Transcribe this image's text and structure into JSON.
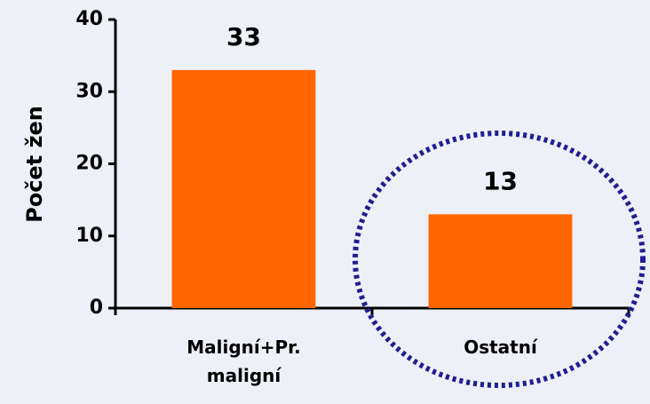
{
  "chart_data": {
    "type": "bar",
    "ylabel": "Počet žen",
    "categories": [
      "Maligní+Pr. maligní",
      "Ostatní"
    ],
    "values": [
      33,
      13
    ],
    "color": "#ff6600",
    "ylim": [
      0,
      40
    ],
    "yticks": [
      0,
      10,
      20,
      30,
      40
    ],
    "grid": false
  }
}
